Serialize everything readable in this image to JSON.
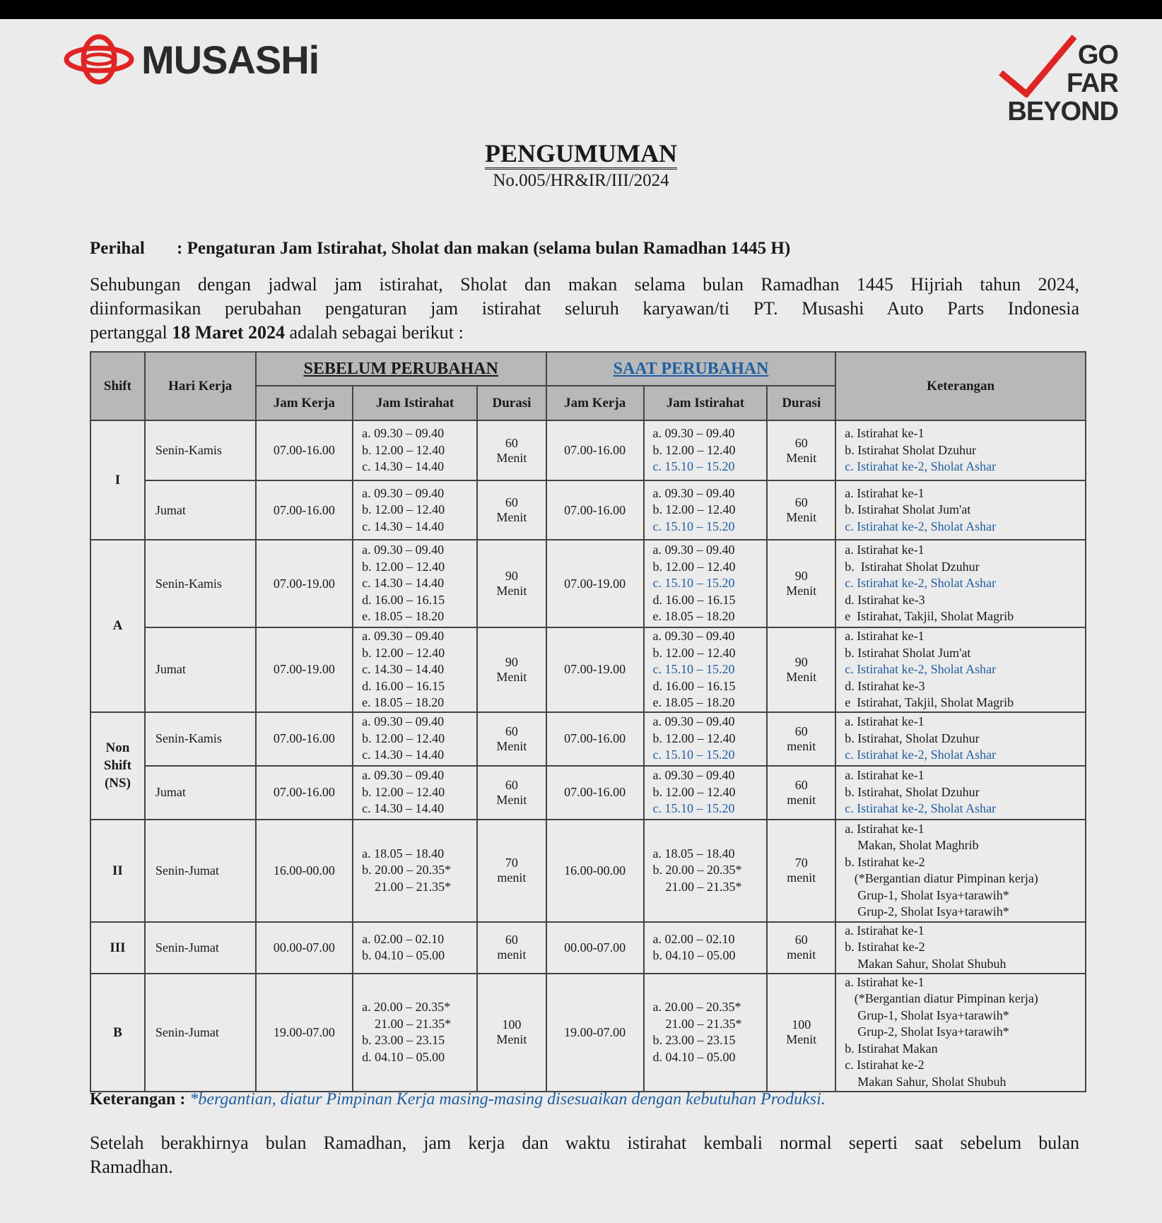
{
  "header": {
    "logo_text": "MUSASHi",
    "slogan": [
      "GO",
      "FAR",
      "BEYOND"
    ],
    "title": "PENGUMUMAN",
    "number": "No.005/HR&IR/III/2024"
  },
  "perihal": {
    "label": "Perihal",
    "text": ": Pengaturan Jam Istirahat, Sholat dan makan (selama bulan Ramadhan 1445 H)"
  },
  "intro": {
    "line1": "Sehubungan dengan jadwal jam istirahat, Sholat dan makan selama bulan Ramadhan 1445 Hijriah tahun 2024,",
    "line2": "diinformasikan perubahan pengaturan jam istirahat seluruh karyawan/ti  PT. Musashi Auto Parts Indonesia",
    "line3_pre": "pertanggal ",
    "line3_bold": "18 Maret 2024",
    "line3_post": " adalah sebagai berikut :"
  },
  "table": {
    "headers": {
      "shift": "Shift",
      "hari": "Hari Kerja",
      "before": "SEBELUM  PERUBAHAN",
      "after": "SAAT PERUBAHAN",
      "ket": "Keterangan",
      "jam_kerja": "Jam Kerja",
      "jam_istirahat": "Jam Istirahat",
      "durasi": "Durasi"
    },
    "rows": [
      {
        "shift": "I",
        "span": 2,
        "hari": "Senin-Kamis",
        "before_kerja": "07.00-16.00",
        "before_ist": [
          "a. 09.30 – 09.40",
          "b. 12.00 – 12.40",
          "c. 14.30 – 14.40"
        ],
        "before_dur": "60\nMenit",
        "after_kerja": "07.00-16.00",
        "after_ist": [
          "a. 09.30 – 09.40",
          "b. 12.00 – 12.40",
          "c. 15.10 – 15.20"
        ],
        "after_dur": "60\nMenit",
        "ket": [
          "a. Istirahat ke-1",
          "b. Istirahat Sholat Dzuhur",
          "c. Istirahat ke-2, Sholat Ashar"
        ],
        "changed_line": 2
      },
      {
        "hari": "Jumat",
        "before_kerja": "07.00-16.00",
        "before_ist": [
          "a. 09.30 – 09.40",
          "b. 12.00 – 12.40",
          "c. 14.30 – 14.40"
        ],
        "before_dur": "60\nMenit",
        "after_kerja": "07.00-16.00",
        "after_ist": [
          "a. 09.30 – 09.40",
          "b. 12.00 – 12.40",
          "c. 15.10 – 15.20"
        ],
        "after_dur": "60\nMenit",
        "ket": [
          "a. Istirahat ke-1",
          "b. Istirahat Sholat Jum'at",
          "c. Istirahat ke-2, Sholat Ashar"
        ],
        "changed_line": 2
      },
      {
        "shift": "A",
        "span": 2,
        "hari": "Senin-Kamis",
        "before_kerja": "07.00-19.00",
        "before_ist": [
          "a. 09.30 – 09.40",
          "b. 12.00 – 12.40",
          "c. 14.30 – 14.40",
          "d. 16.00 – 16.15",
          "e. 18.05 – 18.20"
        ],
        "before_dur": "90\nMenit",
        "after_kerja": "07.00-19.00",
        "after_ist": [
          "a. 09.30 – 09.40",
          "b. 12.00 – 12.40",
          "c. 15.10 – 15.20",
          "d. 16.00 – 16.15",
          "e. 18.05 – 18.20"
        ],
        "after_dur": "90\nMenit",
        "ket": [
          "a. Istirahat ke-1",
          "b.  Istirahat Sholat Dzuhur",
          "c. Istirahat ke-2, Sholat Ashar",
          "d. Istirahat ke-3",
          "e  Istirahat, Takjil, Sholat Magrib"
        ],
        "changed_line": 2
      },
      {
        "hari": "Jumat",
        "before_kerja": "07.00-19.00",
        "before_ist": [
          "a. 09.30 – 09.40",
          "b. 12.00 – 12.40",
          "c. 14.30 – 14.40",
          "d. 16.00 – 16.15",
          "e. 18.05 – 18.20"
        ],
        "before_dur": "90\nMenit",
        "after_kerja": "07.00-19.00",
        "after_ist": [
          "a. 09.30 – 09.40",
          "b. 12.00 – 12.40",
          "c. 15.10 – 15.20",
          "d. 16.00 – 16.15",
          "e. 18.05 – 18.20"
        ],
        "after_dur": "90\nMenit",
        "ket": [
          "a. Istirahat ke-1",
          "b. Istirahat Sholat Jum'at",
          "c. Istirahat ke-2, Sholat Ashar",
          "d. Istirahat ke-3",
          "e  Istirahat, Takjil, Sholat Magrib"
        ],
        "changed_line": 2
      },
      {
        "shift": "Non\nShift\n(NS)",
        "span": 2,
        "hari": "Senin-Kamis",
        "before_kerja": "07.00-16.00",
        "before_ist": [
          "a. 09.30 – 09.40",
          "b. 12.00 – 12.40",
          "c. 14.30 – 14.40"
        ],
        "before_dur": "60\nMenit",
        "after_kerja": "07.00-16.00",
        "after_ist": [
          "a. 09.30 – 09.40",
          "b. 12.00 – 12.40",
          "c. 15.10 – 15.20"
        ],
        "after_dur": "60\nmenit",
        "ket": [
          "a. Istirahat ke-1",
          "b. Istirahat, Sholat Dzuhur",
          "c. Istirahat ke-2, Sholat Ashar"
        ],
        "changed_line": 2
      },
      {
        "hari": "Jumat",
        "before_kerja": "07.00-16.00",
        "before_ist": [
          "a. 09.30 – 09.40",
          "b. 12.00 – 12.40",
          "c. 14.30 – 14.40"
        ],
        "before_dur": "60\nMenit",
        "after_kerja": "07.00-16.00",
        "after_ist": [
          "a. 09.30 – 09.40",
          "b. 12.00 – 12.40",
          "c. 15.10 – 15.20"
        ],
        "after_dur": "60\nmenit",
        "ket": [
          "a. Istirahat ke-1",
          "b. Istirahat, Sholat Dzuhur",
          "c. Istirahat ke-2, Sholat Ashar"
        ],
        "changed_line": 2
      },
      {
        "shift": "II",
        "span": 1,
        "hari": "Senin-Jumat",
        "before_kerja": "16.00-00.00",
        "before_ist": [
          "a. 18.05 – 18.40",
          "b. 20.00 – 20.35*",
          "    21.00 – 21.35*"
        ],
        "before_dur": "70\nmenit",
        "after_kerja": "16.00-00.00",
        "after_ist": [
          "a. 18.05 – 18.40",
          "b. 20.00 – 20.35*",
          "    21.00 – 21.35*"
        ],
        "after_dur": "70\nmenit",
        "ket": [
          "a. Istirahat ke-1",
          "    Makan, Sholat Maghrib",
          "b. Istirahat ke-2",
          "   (*Bergantian diatur Pimpinan kerja)",
          "    Grup-1, Sholat Isya+tarawih*",
          "    Grup-2, Sholat Isya+tarawih*"
        ],
        "changed_line": -1
      },
      {
        "shift": "III",
        "span": 1,
        "hari": "Senin-Jumat",
        "before_kerja": "00.00-07.00",
        "before_ist": [
          "a. 02.00 – 02.10",
          "b. 04.10 – 05.00"
        ],
        "before_dur": "60\nmenit",
        "after_kerja": "00.00-07.00",
        "after_ist": [
          "a. 02.00 – 02.10",
          "b. 04.10 – 05.00"
        ],
        "after_dur": "60\nmenit",
        "ket": [
          "a. Istirahat ke-1",
          "b. Istirahat ke-2",
          "    Makan Sahur, Sholat Shubuh"
        ],
        "changed_line": -1
      },
      {
        "shift": "B",
        "span": 1,
        "hari": "Senin-Jumat",
        "before_kerja": "19.00-07.00",
        "before_ist": [
          "a. 20.00 – 20.35*",
          "    21.00 – 21.35*",
          "b. 23.00 – 23.15",
          "d. 04.10 – 05.00"
        ],
        "before_dur": "100\nMenit",
        "after_kerja": "19.00-07.00",
        "after_ist": [
          "a. 20.00 – 20.35*",
          "    21.00 – 21.35*",
          "b. 23.00 – 23.15",
          "d. 04.10 – 05.00"
        ],
        "after_dur": "100\nMenit",
        "ket": [
          "a. Istirahat ke-1",
          "   (*Bergantian diatur Pimpinan kerja)",
          "    Grup-1, Sholat Isya+tarawih*",
          "    Grup-2, Sholat Isya+tarawih*",
          "b. Istirahat Makan",
          "c. Istirahat ke-2",
          "    Makan Sahur, Sholat Shubuh"
        ],
        "changed_line": -1
      }
    ]
  },
  "note": {
    "label": "Keterangan : ",
    "text": "*bergantian, diatur Pimpinan Kerja masing-masing disesuaikan dengan kebutuhan Produksi."
  },
  "closing": {
    "line1": "Setelah berakhirnya bulan Ramadhan, jam kerja dan waktu istirahat kembali normal seperti saat sebelum bulan",
    "line2": "Ramadhan."
  },
  "colors": {
    "accent_blue": "#1f5fa0",
    "logo_red": "#e02424",
    "header_gray": "#b7b8ba"
  }
}
